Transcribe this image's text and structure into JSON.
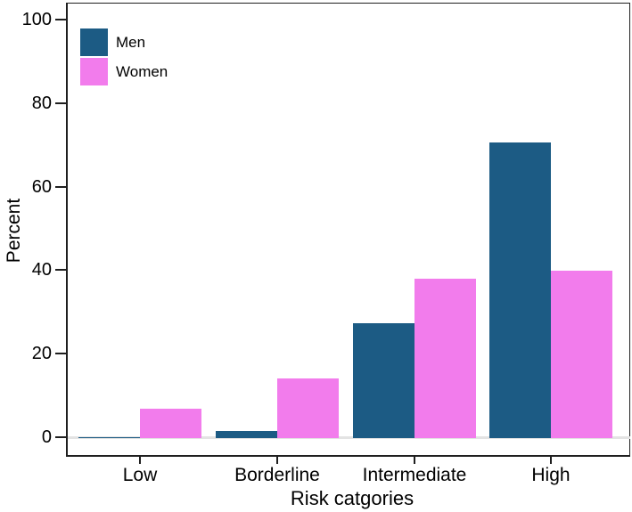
{
  "chart_data": {
    "type": "bar",
    "title": "",
    "categories": [
      "Low",
      "Borderline",
      "Intermediate",
      "High"
    ],
    "series": [
      {
        "name": "Men",
        "color": "#1c5b84",
        "values": [
          0.2,
          1.7,
          27.5,
          70.8
        ]
      },
      {
        "name": "Women",
        "color": "#f27cec",
        "values": [
          7.0,
          14.3,
          38.2,
          40.1
        ]
      }
    ],
    "xlabel": "Risk catgories",
    "ylabel": "Percent",
    "ylim": [
      0,
      100
    ],
    "yticks": [
      0,
      20,
      40,
      60,
      80,
      100
    ],
    "grid": false,
    "legend_position": "inside-top-left",
    "bar_grouping": "paired-no-gap"
  },
  "colors": {
    "men_bar": "#1c5b84",
    "women_bar": "#f27cec",
    "axis": "#1f1f1f",
    "baseline_shadow": "#e3e3e3",
    "background": "#ffffff",
    "text": "#000000"
  }
}
